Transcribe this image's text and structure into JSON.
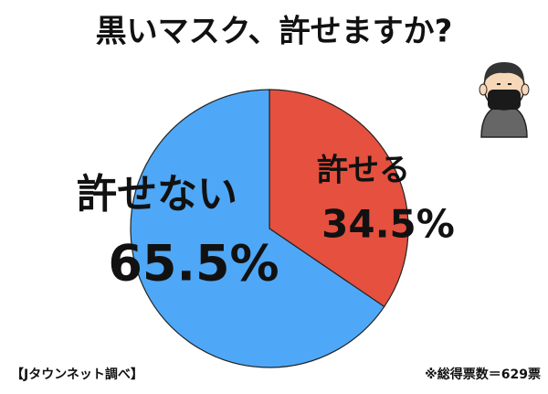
{
  "chart_data": {
    "type": "pie",
    "title": "黒いマスク、許せますか?",
    "categories": [
      "許せる",
      "許せない"
    ],
    "values": [
      34.5,
      65.5
    ],
    "value_labels": [
      "34.5%",
      "65.5%"
    ],
    "colors": [
      "#e5503f",
      "#4ea8f7"
    ],
    "source": "【Jタウンネット調べ】",
    "note": "※総得票数＝629票"
  }
}
